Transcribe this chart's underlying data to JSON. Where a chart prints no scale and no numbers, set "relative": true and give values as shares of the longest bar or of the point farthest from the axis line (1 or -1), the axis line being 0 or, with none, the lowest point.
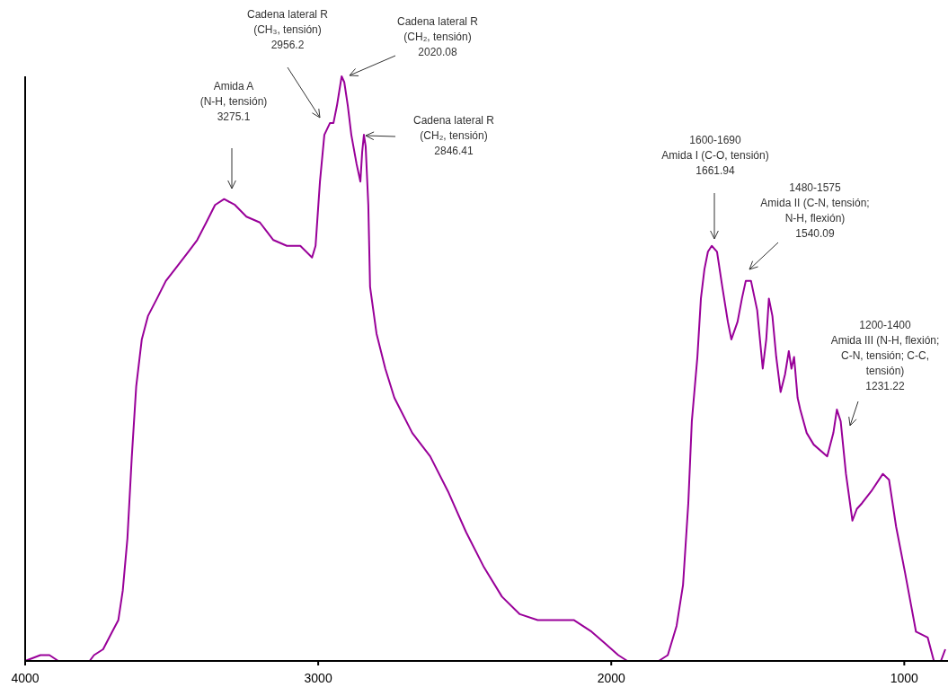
{
  "chart_data": {
    "type": "line",
    "relative": true,
    "xlim": [
      4000,
      860
    ],
    "xticks": [
      4000,
      3000,
      2000,
      1000
    ],
    "grid": false,
    "line_style": "solid",
    "series": [
      {
        "color": "#990099",
        "x": [
          4000,
          3948,
          3917,
          3887,
          3780,
          3765,
          3734,
          3703,
          3682,
          3667,
          3651,
          3636,
          3621,
          3602,
          3581,
          3550,
          3520,
          3489,
          3443,
          3413,
          3382,
          3352,
          3321,
          3284,
          3245,
          3199,
          3153,
          3107,
          3061,
          3021,
          3009,
          2994,
          2979,
          2960,
          2948,
          2936,
          2920,
          2911,
          2899,
          2887,
          2869,
          2856,
          2850,
          2844,
          2838,
          2829,
          2823,
          2801,
          2771,
          2740,
          2679,
          2618,
          2557,
          2495,
          2434,
          2373,
          2312,
          2251,
          2174,
          2128,
          2067,
          2021,
          1976,
          1945,
          1838,
          1807,
          1777,
          1755,
          1737,
          1725,
          1706,
          1694,
          1682,
          1670,
          1657,
          1639,
          1621,
          1602,
          1590,
          1569,
          1554,
          1541,
          1523,
          1502,
          1483,
          1471,
          1462,
          1450,
          1437,
          1422,
          1407,
          1394,
          1385,
          1376,
          1364,
          1355,
          1333,
          1309,
          1263,
          1242,
          1230,
          1217,
          1199,
          1177,
          1162,
          1144,
          1113,
          1073,
          1052,
          1028,
          997,
          960,
          920,
          899,
          875,
          860
        ],
        "values": [
          0.0,
          0.01,
          0.01,
          0.0,
          0.0,
          0.01,
          0.02,
          0.05,
          0.07,
          0.12,
          0.21,
          0.35,
          0.47,
          0.55,
          0.59,
          0.62,
          0.65,
          0.67,
          0.7,
          0.72,
          0.75,
          0.78,
          0.79,
          0.78,
          0.76,
          0.75,
          0.72,
          0.71,
          0.71,
          0.69,
          0.71,
          0.82,
          0.9,
          0.92,
          0.92,
          0.95,
          1.0,
          0.99,
          0.95,
          0.9,
          0.85,
          0.82,
          0.87,
          0.9,
          0.88,
          0.78,
          0.64,
          0.56,
          0.5,
          0.45,
          0.39,
          0.35,
          0.29,
          0.22,
          0.16,
          0.11,
          0.08,
          0.07,
          0.07,
          0.07,
          0.05,
          0.03,
          0.01,
          0.0,
          0.0,
          0.01,
          0.06,
          0.13,
          0.27,
          0.41,
          0.52,
          0.62,
          0.67,
          0.7,
          0.71,
          0.7,
          0.64,
          0.58,
          0.55,
          0.58,
          0.62,
          0.65,
          0.65,
          0.6,
          0.5,
          0.55,
          0.62,
          0.59,
          0.52,
          0.46,
          0.49,
          0.53,
          0.5,
          0.52,
          0.45,
          0.43,
          0.39,
          0.37,
          0.35,
          0.39,
          0.43,
          0.41,
          0.32,
          0.24,
          0.26,
          0.27,
          0.29,
          0.32,
          0.31,
          0.23,
          0.15,
          0.05,
          0.04,
          0.0,
          0.0,
          0.02
        ]
      }
    ],
    "annotations": [
      "Amida A\n(N-H, tensión)\n3275.1",
      "Cadena  lateral R\n(CH₃, tensión)\n2956.2",
      "Cadena  lateral R\n(CH₂, tensión)\n2020.08",
      "Cadena  lateral R\n(CH₂, tensión)\n2846.41",
      "1600-1690\nAmida I (C-O, tensión)\n1661.94",
      "1480-1575\nAmida II (C-N, tensión;\nN-H, flexión)\n1540.09",
      "1200-1400\nAmida III (N-H, flexión;\nC-N, tensión; C-C,\ntensión)\n1231.22"
    ]
  }
}
